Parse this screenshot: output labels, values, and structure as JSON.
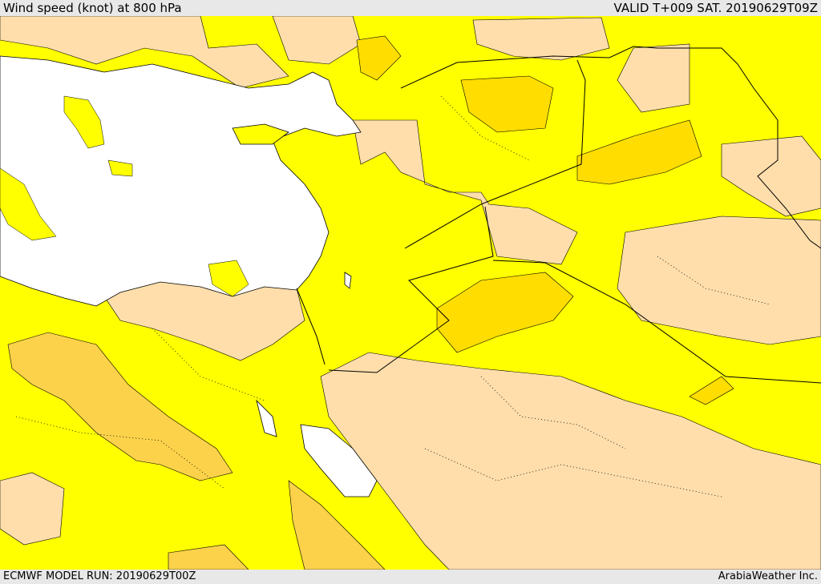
{
  "header": {
    "title": "Wind speed (knot) at 800 hPa",
    "valid": "VALID T+009 SAT. 20190629T09Z"
  },
  "footer": {
    "model_run": "ECMWF MODEL RUN: 20190629T00Z",
    "credit": "ArabiaWeather Inc."
  },
  "colors": {
    "sea": "#ffffff",
    "calm": "#ffdeab",
    "light": "#ffff00",
    "moderate": "#ffdd00",
    "strong": "#fcd24a",
    "borders": "#000000"
  }
}
